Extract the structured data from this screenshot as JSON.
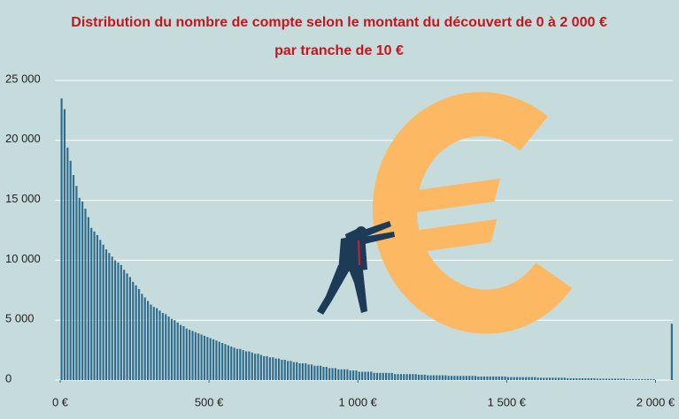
{
  "chart_data": {
    "type": "histogram",
    "title": "Distribution du nombre de compte selon le montant du découvert de 0 à 2 000 €",
    "subtitle": "par tranche de 10 €",
    "color": "#2f6c8e",
    "grid": true,
    "xlim": [
      0,
      2070
    ],
    "ylim": [
      0,
      25000
    ],
    "xticks": [
      {
        "value": 0,
        "label": "0 €"
      },
      {
        "value": 500,
        "label": "500 €"
      },
      {
        "value": 1000,
        "label": "1 000 €"
      },
      {
        "value": 1500,
        "label": "1 500 €"
      },
      {
        "value": 2000,
        "label": "2 000 €"
      }
    ],
    "yticks": [
      0,
      {
        "value": 5000,
        "label": "5 000"
      },
      {
        "value": 10000,
        "label": "10 000"
      },
      {
        "value": 15000,
        "label": "15 000"
      },
      {
        "value": 20000,
        "label": "20 000"
      },
      {
        "value": 25000,
        "label": "25 000"
      }
    ],
    "bins": [
      0,
      10,
      20,
      30,
      40,
      50,
      60,
      70,
      80,
      90,
      100,
      110,
      120,
      130,
      140,
      150,
      160,
      170,
      180,
      190,
      200,
      210,
      220,
      230,
      240,
      250,
      260,
      270,
      280,
      290,
      300,
      310,
      320,
      330,
      340,
      350,
      360,
      370,
      380,
      390,
      400,
      410,
      420,
      430,
      440,
      450,
      460,
      470,
      480,
      490,
      500,
      510,
      520,
      530,
      540,
      550,
      560,
      570,
      580,
      590,
      600,
      610,
      620,
      630,
      640,
      650,
      660,
      670,
      680,
      690,
      700,
      710,
      720,
      730,
      740,
      750,
      760,
      770,
      780,
      790,
      800,
      810,
      820,
      830,
      840,
      850,
      860,
      870,
      880,
      890,
      900,
      910,
      920,
      930,
      940,
      950,
      960,
      970,
      980,
      990,
      1000,
      1010,
      1020,
      1030,
      1040,
      1050,
      1060,
      1070,
      1080,
      1090,
      1100,
      1110,
      1120,
      1130,
      1140,
      1150,
      1160,
      1170,
      1180,
      1190,
      1200,
      1210,
      1220,
      1230,
      1240,
      1250,
      1260,
      1270,
      1280,
      1290,
      1300,
      1310,
      1320,
      1330,
      1340,
      1350,
      1360,
      1370,
      1380,
      1390,
      1400,
      1410,
      1420,
      1430,
      1440,
      1450,
      1460,
      1470,
      1480,
      1490,
      1500,
      1510,
      1520,
      1530,
      1540,
      1550,
      1560,
      1570,
      1580,
      1590,
      1600,
      1610,
      1620,
      1630,
      1640,
      1650,
      1660,
      1670,
      1680,
      1690,
      1700,
      1710,
      1720,
      1730,
      1740,
      1750,
      1760,
      1770,
      1780,
      1790,
      1800,
      1810,
      1820,
      1830,
      1840,
      1850,
      1860,
      1870,
      1880,
      1890,
      1900,
      1910,
      1920,
      1930,
      1940,
      1950,
      1960,
      1970,
      1980,
      1990,
      2000,
      2010,
      2020,
      2030,
      2040,
      2050,
      2060
    ],
    "values": [
      23500,
      22600,
      19400,
      18300,
      17100,
      16200,
      15200,
      14900,
      14300,
      13600,
      12700,
      12400,
      12100,
      11700,
      11300,
      10900,
      10600,
      10300,
      10000,
      9800,
      9600,
      9200,
      8900,
      8600,
      8200,
      7900,
      7600,
      7200,
      6900,
      6600,
      6300,
      6100,
      6000,
      5800,
      5600,
      5500,
      5300,
      5100,
      5000,
      4800,
      4600,
      4500,
      4300,
      4200,
      4100,
      4000,
      3900,
      3800,
      3700,
      3600,
      3500,
      3400,
      3300,
      3200,
      3100,
      3000,
      2900,
      2800,
      2700,
      2600,
      2600,
      2500,
      2400,
      2400,
      2300,
      2200,
      2200,
      2100,
      2000,
      2000,
      1900,
      1900,
      1800,
      1800,
      1700,
      1700,
      1600,
      1600,
      1500,
      1500,
      1400,
      1400,
      1400,
      1300,
      1300,
      1200,
      1200,
      1200,
      1100,
      1100,
      1000,
      1000,
      1000,
      900,
      900,
      900,
      900,
      800,
      800,
      800,
      700,
      700,
      700,
      700,
      700,
      600,
      600,
      600,
      600,
      600,
      600,
      600,
      500,
      500,
      500,
      500,
      500,
      500,
      500,
      500,
      450,
      450,
      450,
      400,
      400,
      400,
      400,
      400,
      400,
      400,
      350,
      350,
      350,
      350,
      350,
      350,
      350,
      350,
      350,
      350,
      300,
      300,
      300,
      300,
      300,
      300,
      300,
      300,
      300,
      300,
      250,
      250,
      250,
      250,
      250,
      250,
      250,
      250,
      250,
      250,
      200,
      200,
      200,
      200,
      200,
      200,
      200,
      200,
      200,
      200,
      150,
      150,
      150,
      150,
      150,
      150,
      150,
      150,
      150,
      150,
      120,
      120,
      120,
      120,
      120,
      120,
      120,
      120,
      120,
      120,
      80,
      80,
      80,
      80,
      80,
      80,
      80,
      80,
      80,
      80,
      0,
      0,
      0,
      0,
      0,
      4700
    ]
  }
}
